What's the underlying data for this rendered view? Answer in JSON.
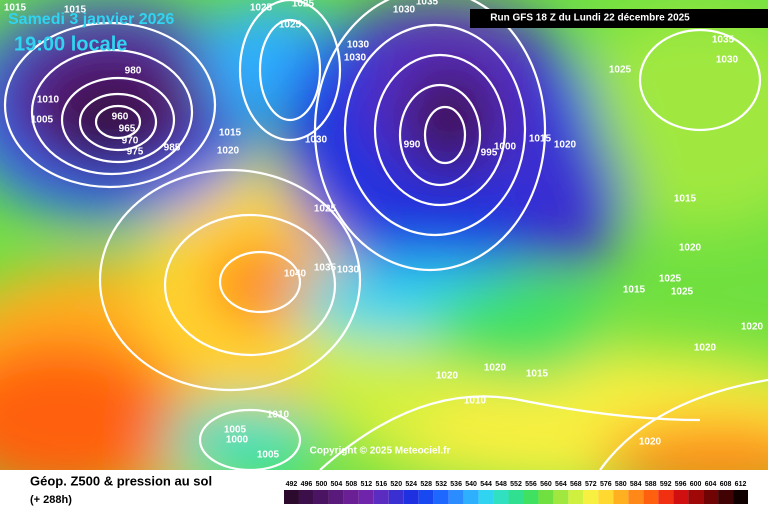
{
  "header": {
    "date": "Samedi 3 janvier 2026",
    "time": "19:00 locale",
    "run": "Run GFS 18 Z du Lundi 22 décembre 2025"
  },
  "map": {
    "copyright": "Copyright © 2025 Meteociel.fr",
    "isobar_labels": [
      "1015",
      "1015",
      "1025",
      "1025",
      "1030",
      "1035",
      "1025",
      "980",
      "1010",
      "1005",
      "960",
      "965",
      "970",
      "975",
      "985",
      "1015",
      "1020",
      "1030",
      "1030",
      "1030",
      "1025",
      "1040",
      "1035",
      "1030",
      "990",
      "1000",
      "995",
      "1015",
      "1020",
      "1025",
      "1035",
      "1030",
      "1015",
      "1020",
      "1025",
      "1025",
      "1015",
      "1020",
      "1020",
      "1020",
      "1020",
      "1010",
      "1015",
      "1010",
      "1005",
      "1000",
      "1005",
      "1020"
    ]
  },
  "footer": {
    "title": "Géop. Z500 & pression au sol",
    "lead": "(+ 288h)"
  },
  "legend": {
    "values": [
      492,
      496,
      500,
      504,
      508,
      512,
      516,
      520,
      524,
      528,
      532,
      536,
      540,
      544,
      548,
      552,
      556,
      560,
      564,
      568,
      572,
      576,
      580,
      584,
      588,
      592,
      596,
      600,
      604,
      608,
      612
    ],
    "colors": [
      "#2b0a2e",
      "#3c0f4a",
      "#4b1462",
      "#5a1a7c",
      "#6a1f95",
      "#7024ac",
      "#5a2dc0",
      "#3a2fd0",
      "#1f30e0",
      "#1848f0",
      "#1f68ff",
      "#2a8cff",
      "#2eb0ff",
      "#30d4f0",
      "#30e0c0",
      "#30e090",
      "#40e060",
      "#70e040",
      "#a0e840",
      "#d0f040",
      "#f8f040",
      "#ffd830",
      "#ffb020",
      "#ff8818",
      "#ff6010",
      "#f03010",
      "#d01010",
      "#a00808",
      "#700404",
      "#400202",
      "#100000"
    ]
  }
}
